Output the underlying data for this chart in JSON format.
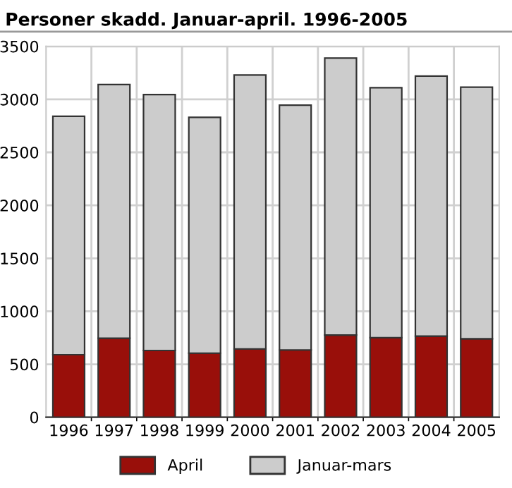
{
  "chart_data": {
    "type": "bar",
    "title": "Personer skadd. Januar-april. 1996-2005",
    "stacked": true,
    "categories": [
      "1996",
      "1997",
      "1998",
      "1999",
      "2000",
      "2001",
      "2002",
      "2003",
      "2004",
      "2005"
    ],
    "series": [
      {
        "name": "April",
        "color": "#990f0a",
        "values": [
          590,
          745,
          630,
          605,
          645,
          635,
          775,
          750,
          765,
          740
        ]
      },
      {
        "name": "Januar-mars",
        "color": "#cccccc",
        "values": [
          2250,
          2395,
          2415,
          2225,
          2585,
          2310,
          2615,
          2360,
          2455,
          2375
        ]
      }
    ],
    "ylim": [
      0,
      3500
    ],
    "yticks": [
      0,
      500,
      1000,
      1500,
      2000,
      2500,
      3000,
      3500
    ],
    "grid": true,
    "legend": "bottom"
  }
}
